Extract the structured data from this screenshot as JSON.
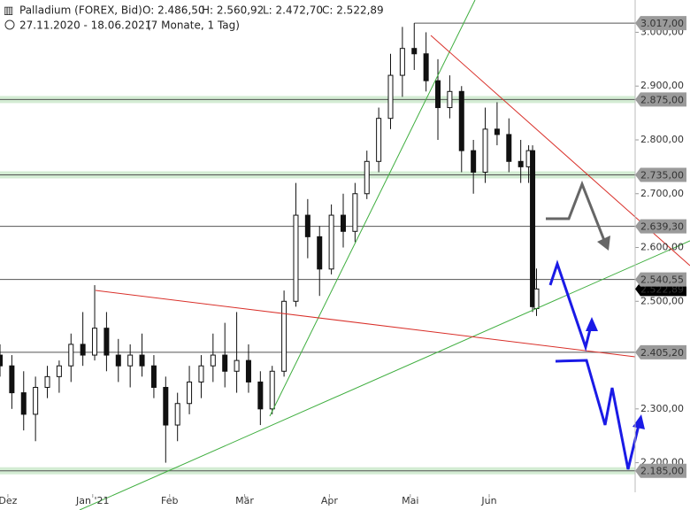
{
  "header": {
    "title": "Palladium (FOREX, Bid)",
    "open": "O: 2.486,50",
    "high": "H: 2.560,92",
    "low": "L: 2.472,70",
    "close": "C: 2.522,89",
    "range": "27.11.2020 - 18.06.2021",
    "duration": "(7 Monate, 1 Tag)"
  },
  "chart_data": {
    "type": "candlestick",
    "xlim": [
      0,
      161
    ],
    "ylim": [
      2145,
      3060
    ],
    "xticks": [
      {
        "value": 2,
        "label": "Dez"
      },
      {
        "value": 23.5,
        "label": "Jan '21"
      },
      {
        "value": 43,
        "label": "Feb"
      },
      {
        "value": 62,
        "label": "Mär"
      },
      {
        "value": 83.5,
        "label": "Apr"
      },
      {
        "value": 104,
        "label": "Mai"
      },
      {
        "value": 124,
        "label": "Jun"
      }
    ],
    "yticks": [
      {
        "value": 3000,
        "label": "3.000,00"
      },
      {
        "value": 2900,
        "label": "2.900,00"
      },
      {
        "value": 2800,
        "label": "2.800,00"
      },
      {
        "value": 2700,
        "label": "2.700,00"
      },
      {
        "value": 2600,
        "label": "2.600,00"
      },
      {
        "value": 2500,
        "label": "2.500,00"
      },
      {
        "value": 2300,
        "label": "2.300,00"
      },
      {
        "value": 2200,
        "label": "2.200,00"
      }
    ],
    "x": [
      0,
      3,
      6,
      9,
      12,
      15,
      18,
      21,
      24,
      27,
      30,
      33,
      36,
      39,
      42,
      45,
      48,
      51,
      54,
      57,
      60,
      63,
      66,
      69,
      72,
      75,
      78,
      81,
      84,
      87,
      90,
      93,
      96,
      99,
      102,
      105,
      108,
      111,
      114,
      117,
      120,
      123,
      126,
      129,
      132,
      134,
      135,
      136
    ],
    "open": [
      2400,
      2380,
      2330,
      2290,
      2340,
      2360,
      2380,
      2420,
      2400,
      2450,
      2400,
      2380,
      2400,
      2380,
      2340,
      2270,
      2310,
      2350,
      2380,
      2400,
      2370,
      2390,
      2350,
      2300,
      2370,
      2500,
      2660,
      2620,
      2560,
      2660,
      2630,
      2700,
      2760,
      2840,
      2920,
      2970,
      2960,
      2910,
      2860,
      2890,
      2780,
      2740,
      2820,
      2810,
      2760,
      2750,
      2780,
      2486.5
    ],
    "high": [
      2420,
      2400,
      2370,
      2360,
      2380,
      2390,
      2440,
      2480,
      2530,
      2480,
      2430,
      2420,
      2440,
      2400,
      2360,
      2330,
      2380,
      2400,
      2440,
      2460,
      2480,
      2420,
      2370,
      2380,
      2520,
      2720,
      2690,
      2640,
      2680,
      2700,
      2720,
      2780,
      2860,
      2960,
      3010,
      3017,
      3000,
      2950,
      2920,
      2900,
      2800,
      2860,
      2870,
      2840,
      2800,
      2790,
      2790,
      2560.92
    ],
    "low": [
      2360,
      2300,
      2260,
      2240,
      2320,
      2330,
      2350,
      2380,
      2390,
      2370,
      2350,
      2340,
      2360,
      2320,
      2200,
      2240,
      2290,
      2320,
      2350,
      2340,
      2330,
      2330,
      2270,
      2290,
      2360,
      2490,
      2580,
      2510,
      2550,
      2600,
      2610,
      2690,
      2740,
      2820,
      2880,
      2930,
      2890,
      2800,
      2840,
      2740,
      2700,
      2720,
      2790,
      2740,
      2720,
      2720,
      2480,
      2472.7
    ],
    "close": [
      2380,
      2330,
      2290,
      2340,
      2360,
      2380,
      2420,
      2400,
      2450,
      2400,
      2380,
      2400,
      2380,
      2340,
      2270,
      2310,
      2350,
      2380,
      2400,
      2370,
      2390,
      2350,
      2300,
      2370,
      2500,
      2660,
      2620,
      2560,
      2660,
      2630,
      2700,
      2760,
      2840,
      2920,
      2970,
      2960,
      2910,
      2860,
      2890,
      2780,
      2740,
      2820,
      2810,
      2760,
      2750,
      2780,
      2490,
      2522.89
    ],
    "levels": [
      {
        "value": 3017,
        "label": "3.017,00",
        "color": "#9a9a9a"
      },
      {
        "value": 2875,
        "label": "2.875,00",
        "color": "#9a9a9a",
        "band": true
      },
      {
        "value": 2735,
        "label": "2.735,00",
        "color": "#9a9a9a",
        "band": true
      },
      {
        "value": 2639.3,
        "label": "2.639,30",
        "color": "#9a9a9a"
      },
      {
        "value": 2522.89,
        "label": "2.522,89",
        "color": "#000000"
      },
      {
        "value": 2540.55,
        "label": "2.540,55",
        "color": "#9a9a9a"
      },
      {
        "value": 2405.2,
        "label": "2.405,20",
        "color": "#9a9a9a"
      },
      {
        "value": 2185,
        "label": "2.185,00",
        "color": "#9a9a9a",
        "band": true
      }
    ]
  }
}
